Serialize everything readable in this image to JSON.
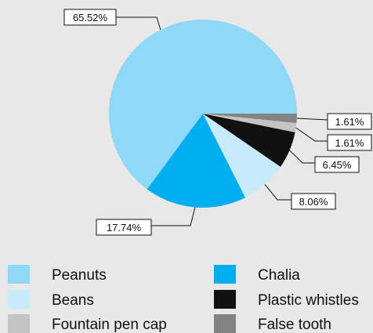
{
  "chart_data": {
    "type": "pie",
    "title": "",
    "start_angle_deg": 0,
    "direction": "counterclockwise",
    "legend_position": "bottom",
    "slices": [
      {
        "name": "Peanuts",
        "value": 65.52,
        "label": "65.52%",
        "color": "#8fd8f8"
      },
      {
        "name": "Chalia",
        "value": 17.74,
        "label": "17.74%",
        "color": "#00aeef"
      },
      {
        "name": "Beans",
        "value": 8.06,
        "label": "8.06%",
        "color": "#c8ebfb"
      },
      {
        "name": "Plastic whistles",
        "value": 6.45,
        "label": "6.45%",
        "color": "#111111"
      },
      {
        "name": "Fountain pen cap",
        "value": 1.61,
        "label": "1.61%",
        "color": "#c4c4c4"
      },
      {
        "name": "False tooth",
        "value": 1.61,
        "label": "1.61%",
        "color": "#838383"
      }
    ],
    "legend_order": [
      "Peanuts",
      "Chalia",
      "Beans",
      "Plastic whistles",
      "Fountain pen cap",
      "False tooth"
    ]
  }
}
